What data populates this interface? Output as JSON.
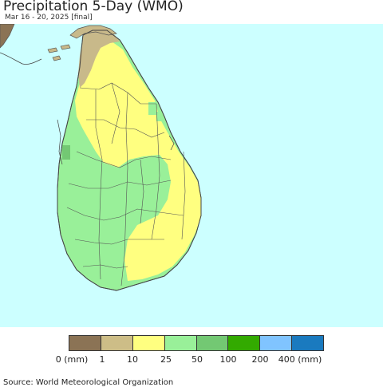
{
  "header": {
    "title": "Precipitation 5-Day (WMO)",
    "subtitle": "Mar 16 - 20, 2025 [final]"
  },
  "map": {
    "colors": {
      "ocean": "#ccffff",
      "border": "#555555",
      "dry": "#8b7355",
      "tan": "#c8b98a",
      "yellow": "#ffff80",
      "lightgreen": "#99f099",
      "medgreen": "#73c873"
    }
  },
  "legend": {
    "colors": [
      "#8b7355",
      "#cdbd87",
      "#ffff80",
      "#99f099",
      "#73c873",
      "#33aa00",
      "#80c4ff",
      "#1a7abf"
    ],
    "labels": [
      "0 (mm)",
      "1",
      "10",
      "25",
      "50",
      "100",
      "200",
      "400 (mm)"
    ]
  },
  "footer": {
    "source": "Source: World Meteorological Organization"
  }
}
